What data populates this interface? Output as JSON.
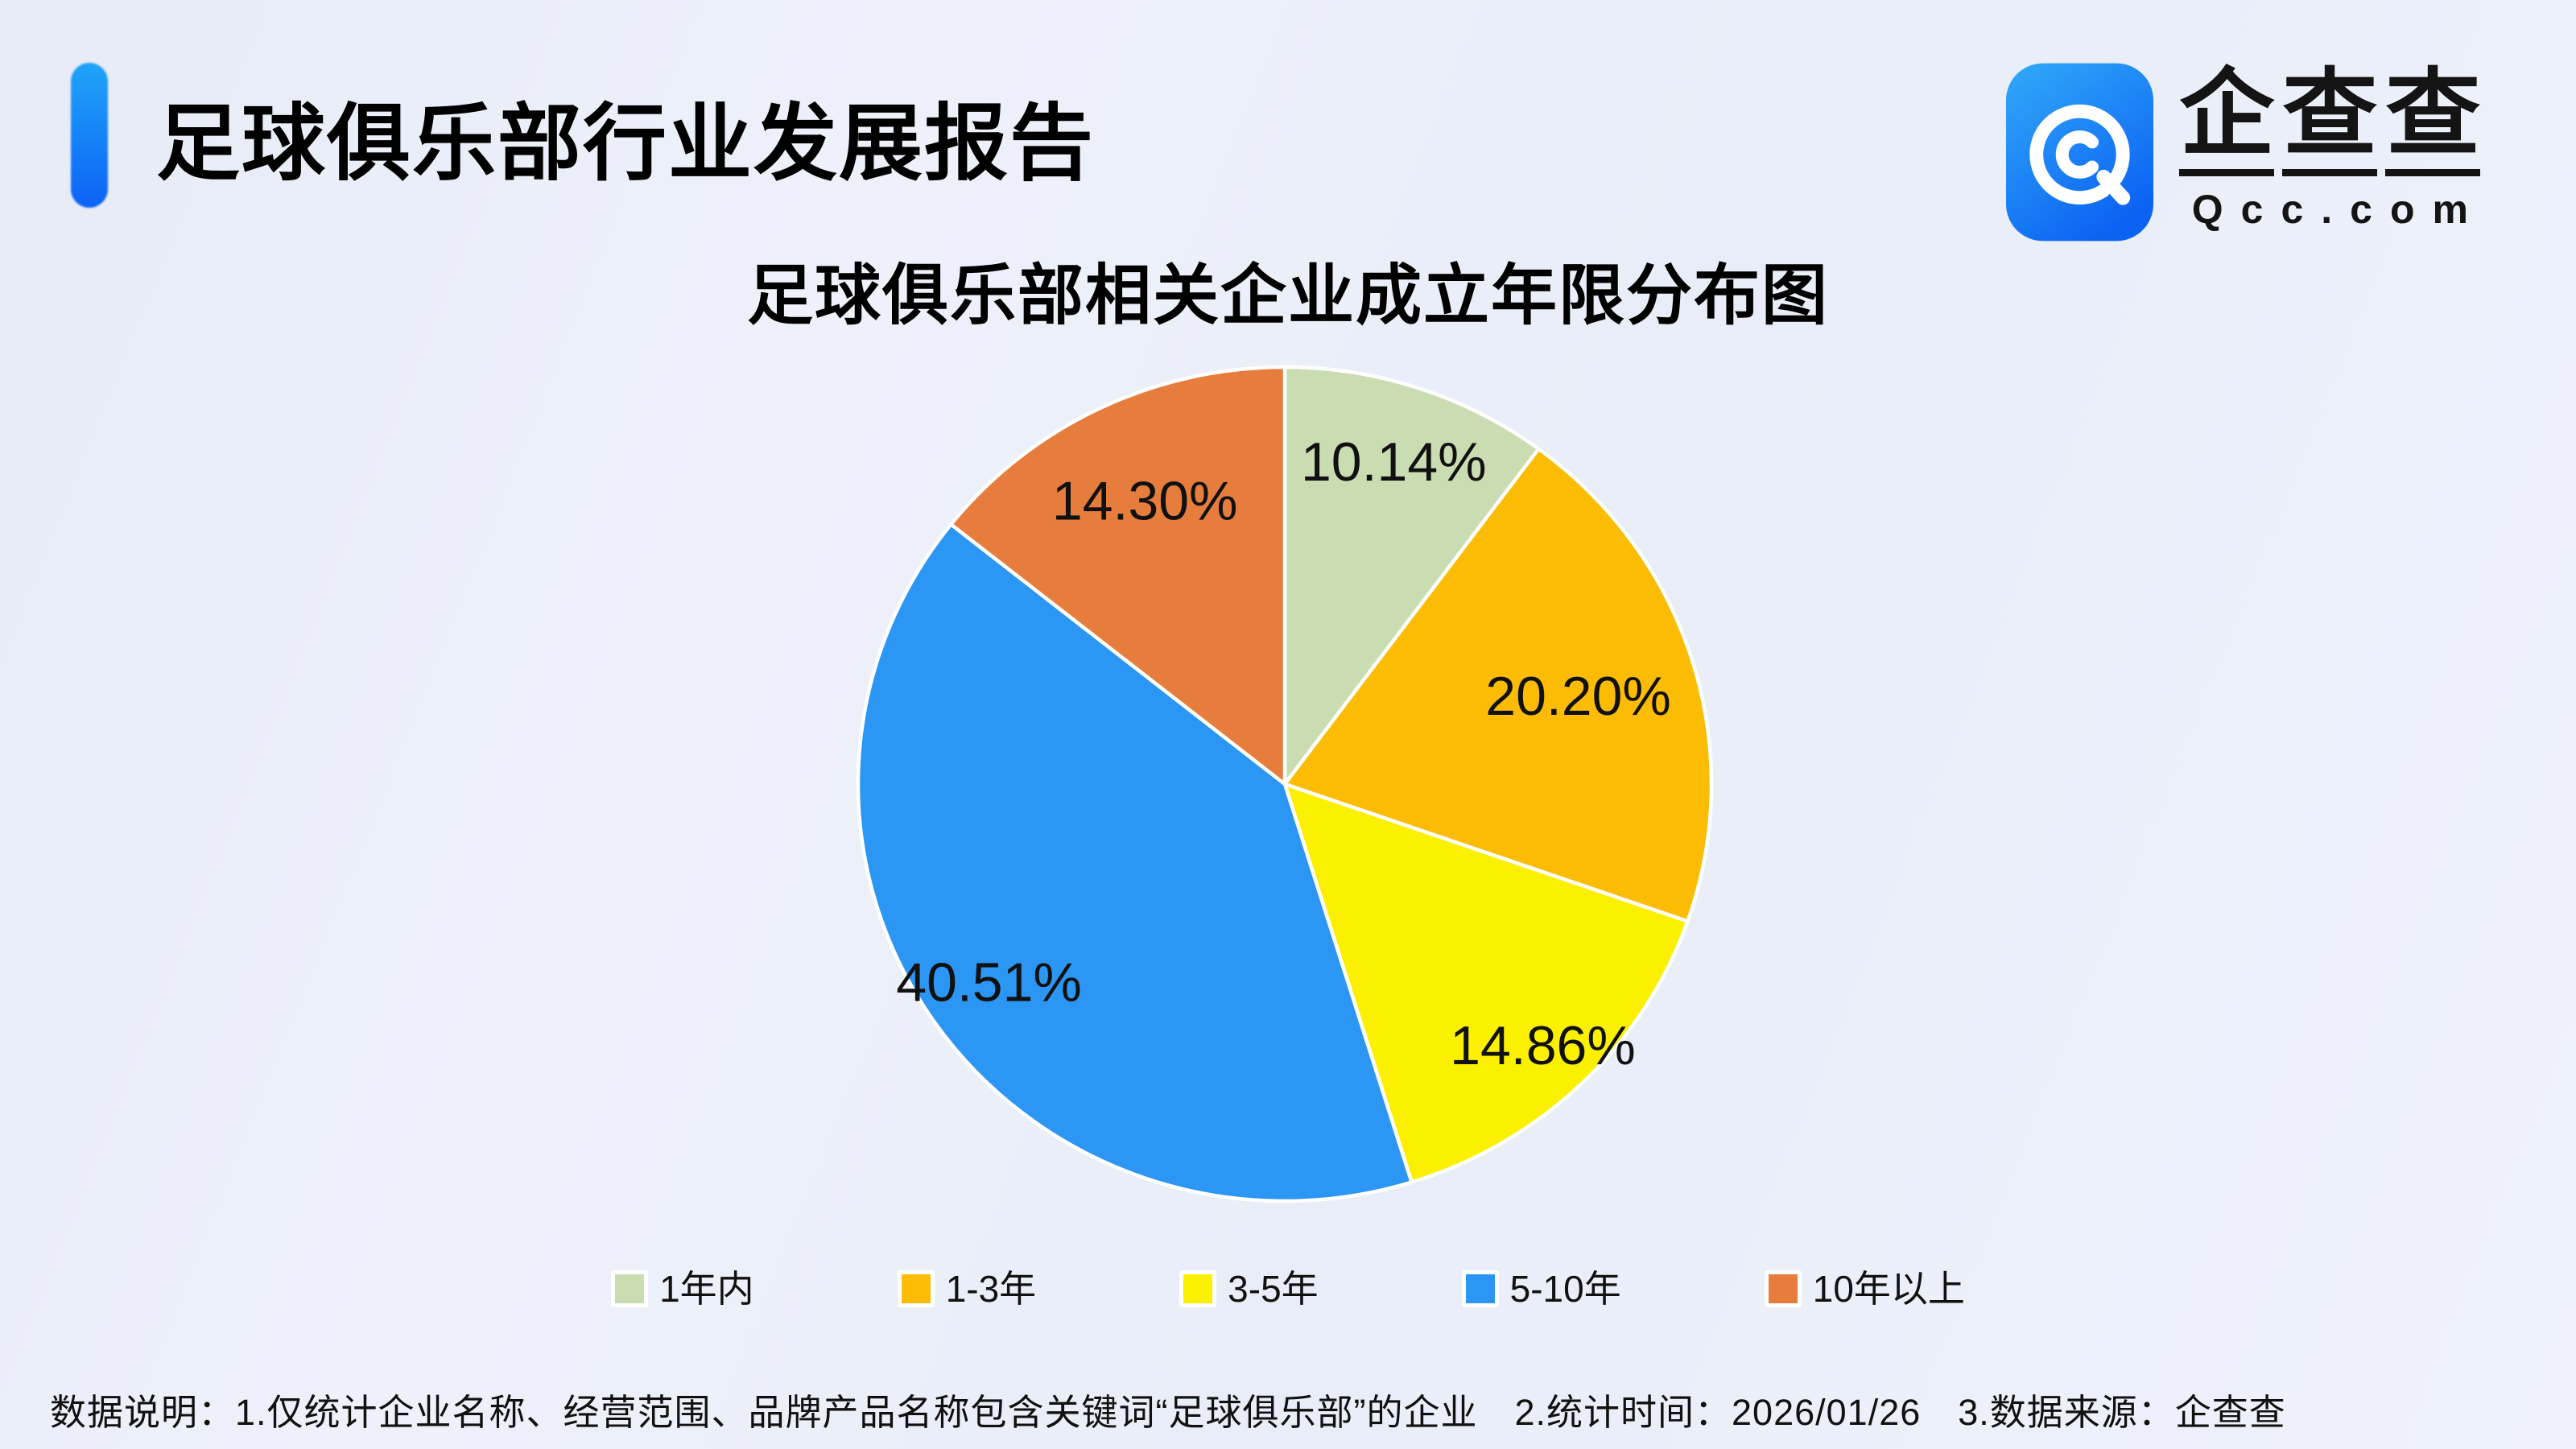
{
  "header": {
    "title": "足球俱乐部行业发展报告",
    "accent_color": "#0c63f6"
  },
  "logo": {
    "company_chars": [
      "企",
      "查",
      "查"
    ],
    "domain": "Qcc.com",
    "icon": "qcc-magnifier-icon",
    "icon_gradient": {
      "from": "#31aaf9",
      "to": "#0c63f3"
    }
  },
  "chart": {
    "title": "足球俱乐部相关企业成立年限分布图"
  },
  "chart_data": {
    "type": "pie",
    "title": "足球俱乐部相关企业成立年限分布图",
    "start_angle_deg": 0,
    "direction": "clockwise",
    "label_color": "#111111",
    "separator_color": "#ffffff",
    "legend_position": "bottom",
    "slices": [
      {
        "label": "1年内",
        "value": 10.14,
        "display": "10.14%",
        "color": "#C9DCB2"
      },
      {
        "label": "1-3年",
        "value": 20.2,
        "display": "20.20%",
        "color": "#FBBC03"
      },
      {
        "label": "3-5年",
        "value": 14.86,
        "display": "14.86%",
        "color": "#FCF001"
      },
      {
        "label": "5-10年",
        "value": 40.51,
        "display": "40.51%",
        "color": "#2B96F3"
      },
      {
        "label": "10年以上",
        "value": 14.3,
        "display": "14.30%",
        "color": "#E67D3C"
      }
    ]
  },
  "footer": {
    "note": "数据说明：1.仅统计企业名称、经营范围、品牌产品名称包含关键词“足球俱乐部”的企业　2.统计时间：2026/01/26　3.数据来源：企查查"
  }
}
